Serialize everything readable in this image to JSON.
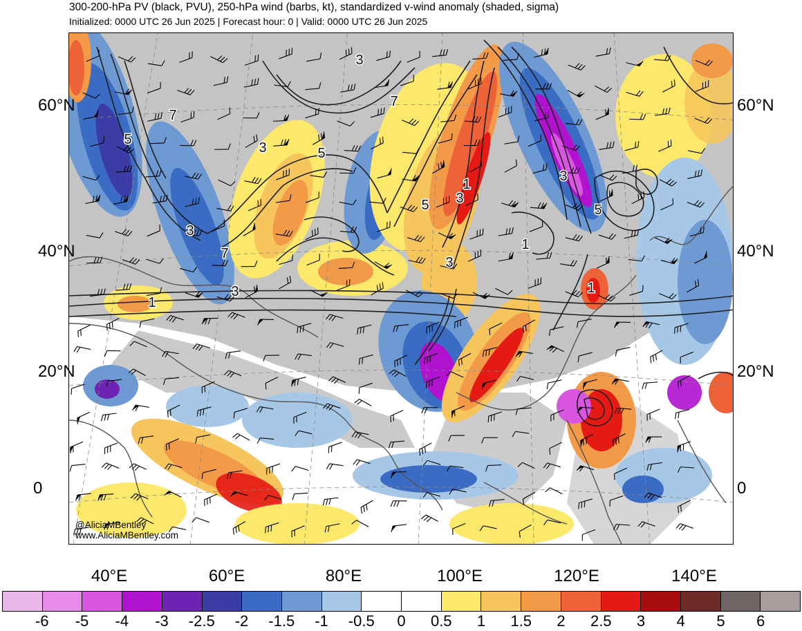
{
  "header": {
    "title": "300-200-hPa PV (black, PVU), 250-hPa wind (barbs, kt), standardized v-wind anomaly (shaded, sigma)",
    "subtitle": "Initialized: 0000 UTC 26 Jun 2025 | Forecast hour: 0 | Valid: 0000 UTC 26 Jun 2025"
  },
  "map": {
    "projection": "lambert-conformal",
    "region": "Asia",
    "lat_labels": [
      "60°N",
      "40°N",
      "20°N",
      "0"
    ],
    "lon_labels": [
      "40°E",
      "60°E",
      "80°E",
      "100°E",
      "120°E",
      "140°E"
    ],
    "pv_contour_labels": [
      "5",
      "3",
      "7",
      "3",
      "1",
      "3",
      "7",
      "5",
      "3",
      "3",
      "5",
      "1",
      "3",
      "3",
      "5",
      "1",
      "1",
      "7"
    ],
    "colors": {
      "pv_contour": "#1e1e1e",
      "land_gray": "#c4c4c4",
      "coastline": "#555555",
      "wind_barb": "#000000"
    }
  },
  "credits": {
    "handle": "@AliciaMBentley",
    "website": "www.AliciaMBentley.com"
  },
  "colorbar": {
    "unit": "sigma",
    "labels": [
      "-6",
      "-5",
      "-4",
      "-3",
      "-2.5",
      "-2",
      "-1.5",
      "-1",
      "-0.5",
      "0",
      "0.5",
      "1",
      "1.5",
      "2",
      "2.5",
      "3",
      "4",
      "5",
      "6"
    ],
    "colors": [
      "#e8b8e8",
      "#e88ae8",
      "#da55e2",
      "#b012d0",
      "#7022b4",
      "#3c3ca6",
      "#3a6cc4",
      "#6e9ad4",
      "#a6c8e6",
      "#ffffff",
      "#ffffff",
      "#fce86a",
      "#f6c65c",
      "#f29a48",
      "#ee6238",
      "#e61a14",
      "#a80e0e",
      "#6e2a28",
      "#706464",
      "#a89c9c"
    ]
  }
}
